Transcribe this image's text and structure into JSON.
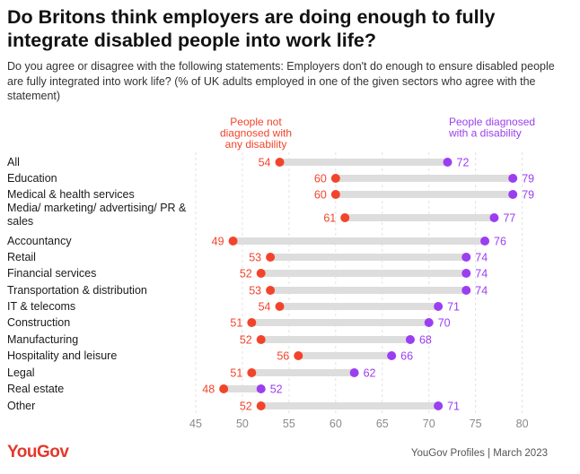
{
  "title": "Do Britons think employers are doing enough to fully integrate disabled people into work life?",
  "subtitle": "Do you agree or disagree with the following statements: Employers don't do enough to ensure disabled people are fully integrated into work life? (% of UK adults employed in one of the given sectors who agree with the statement)",
  "logo": "YouGov",
  "source": "YouGov Profiles | March 2023",
  "colors": {
    "not_diagnosed": "#f2442b",
    "diagnosed": "#9b3ef0",
    "connector": "#dddddd",
    "grid": "#e2e2e2"
  },
  "chart_data": {
    "type": "dumbbell",
    "x_ticks": [
      45,
      50,
      55,
      60,
      65,
      70,
      75,
      80
    ],
    "xlim": [
      45,
      81
    ],
    "legend": {
      "not_diagnosed": "People not diagnosed with any disability",
      "diagnosed": "People diagnosed with a disability"
    },
    "categories": [
      "All",
      "Education",
      "Medical & health services",
      "Media/ marketing/ advertising/ PR & sales",
      "Accountancy",
      "Retail",
      "Financial services",
      "Transportation & distribution",
      "IT & telecoms",
      "Construction",
      "Manufacturing",
      "Hospitality and leisure",
      "Legal",
      "Real estate",
      "Other"
    ],
    "series": [
      {
        "name": "People not diagnosed with any disability",
        "values": [
          54,
          60,
          60,
          61,
          49,
          53,
          52,
          53,
          54,
          51,
          52,
          56,
          51,
          48,
          52
        ]
      },
      {
        "name": "People diagnosed with a disability",
        "values": [
          72,
          79,
          79,
          77,
          76,
          74,
          74,
          74,
          71,
          70,
          68,
          66,
          62,
          52,
          71
        ]
      }
    ]
  }
}
